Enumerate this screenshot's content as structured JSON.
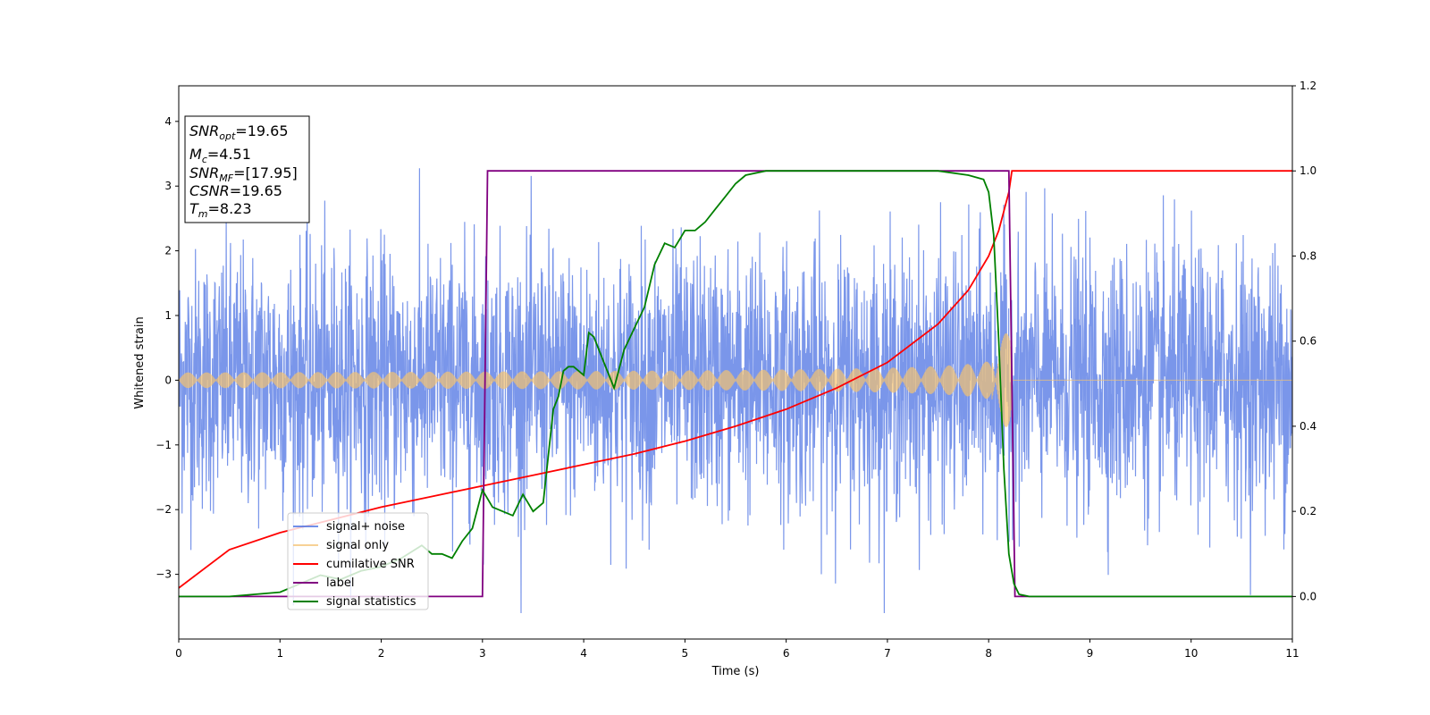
{
  "chart_data": {
    "type": "line",
    "xlabel": "Time (s)",
    "ylabel": "Whitened strain",
    "xlim": [
      0,
      11
    ],
    "ylim": [
      -4,
      4.55
    ],
    "ylim_right": [
      -0.1,
      1.2
    ],
    "x_ticks": [
      "0",
      "1",
      "2",
      "3",
      "4",
      "5",
      "6",
      "7",
      "8",
      "9",
      "10",
      "11"
    ],
    "y_ticks": [
      "4",
      "3",
      "2",
      "1",
      "0",
      "−1",
      "−2",
      "−3"
    ],
    "y_ticks_values": [
      4,
      3,
      2,
      1,
      0,
      -1,
      -2,
      -3
    ],
    "y_right_ticks": [
      "1.2",
      "1.0",
      "0.8",
      "0.6",
      "0.4",
      "0.2",
      "0.0"
    ],
    "y_right_ticks_values": [
      1.2,
      1.0,
      0.8,
      0.6,
      0.4,
      0.2,
      0.0
    ],
    "grid": false,
    "legend_position": "lower-left",
    "annotation": {
      "snr_opt": "=19.65",
      "mc": "=4.51",
      "snr_mf": "=[17.95]",
      "csnr": "=19.65",
      "tm": "=8.23"
    },
    "series": [
      {
        "name": "signal+ noise",
        "color": "#4169e1",
        "axis": "left",
        "kind": "noise",
        "approx_sigma": 1.0,
        "y_range": [
          -3.6,
          4.18
        ]
      },
      {
        "name": "signal only",
        "color": "#f4c271",
        "axis": "left",
        "kind": "chirp",
        "t_start": 0,
        "t_merge": 8.23,
        "amp_start": 0.12,
        "amp_end": 1.0
      },
      {
        "name": "cumilative SNR",
        "color": "#ff0000",
        "axis": "right",
        "x": [
          0,
          0.5,
          1,
          1.5,
          2,
          2.5,
          3,
          3.5,
          4,
          4.5,
          5,
          5.5,
          6,
          6.5,
          7,
          7.5,
          7.8,
          8,
          8.1,
          8.2,
          8.23,
          8.25,
          11
        ],
        "y": [
          0.02,
          0.11,
          0.15,
          0.18,
          0.21,
          0.235,
          0.26,
          0.285,
          0.31,
          0.335,
          0.365,
          0.4,
          0.44,
          0.49,
          0.55,
          0.64,
          0.72,
          0.8,
          0.86,
          0.95,
          1.0,
          1.0,
          1.0
        ]
      },
      {
        "name": "label",
        "color": "#800080",
        "axis": "right",
        "x": [
          0,
          3.0,
          3.05,
          8.2,
          8.26,
          11
        ],
        "y": [
          0,
          0,
          1,
          1,
          0,
          0
        ]
      },
      {
        "name": "signal statistics",
        "color": "#008000",
        "axis": "right",
        "x": [
          0,
          0.5,
          1.0,
          1.2,
          1.4,
          1.6,
          1.8,
          2.0,
          2.2,
          2.4,
          2.5,
          2.6,
          2.7,
          2.8,
          2.9,
          3.0,
          3.1,
          3.2,
          3.3,
          3.4,
          3.5,
          3.6,
          3.7,
          3.75,
          3.8,
          3.85,
          3.9,
          4.0,
          4.05,
          4.1,
          4.2,
          4.3,
          4.4,
          4.5,
          4.6,
          4.7,
          4.8,
          4.9,
          5.0,
          5.1,
          5.2,
          5.3,
          5.4,
          5.5,
          5.6,
          5.8,
          6.0,
          6.5,
          7.0,
          7.5,
          7.8,
          7.95,
          8.0,
          8.05,
          8.1,
          8.15,
          8.2,
          8.25,
          8.3,
          8.4,
          8.6,
          11
        ],
        "y": [
          0.0,
          0.0,
          0.01,
          0.03,
          0.05,
          0.04,
          0.06,
          0.07,
          0.09,
          0.12,
          0.1,
          0.1,
          0.09,
          0.13,
          0.16,
          0.25,
          0.21,
          0.2,
          0.19,
          0.24,
          0.2,
          0.22,
          0.44,
          0.47,
          0.53,
          0.54,
          0.54,
          0.52,
          0.62,
          0.61,
          0.55,
          0.49,
          0.58,
          0.63,
          0.68,
          0.78,
          0.83,
          0.82,
          0.86,
          0.86,
          0.88,
          0.91,
          0.94,
          0.97,
          0.99,
          1.0,
          1.0,
          1.0,
          1.0,
          1.0,
          0.99,
          0.98,
          0.95,
          0.85,
          0.6,
          0.3,
          0.1,
          0.03,
          0.005,
          0.0,
          0.0,
          0.0
        ]
      }
    ]
  }
}
